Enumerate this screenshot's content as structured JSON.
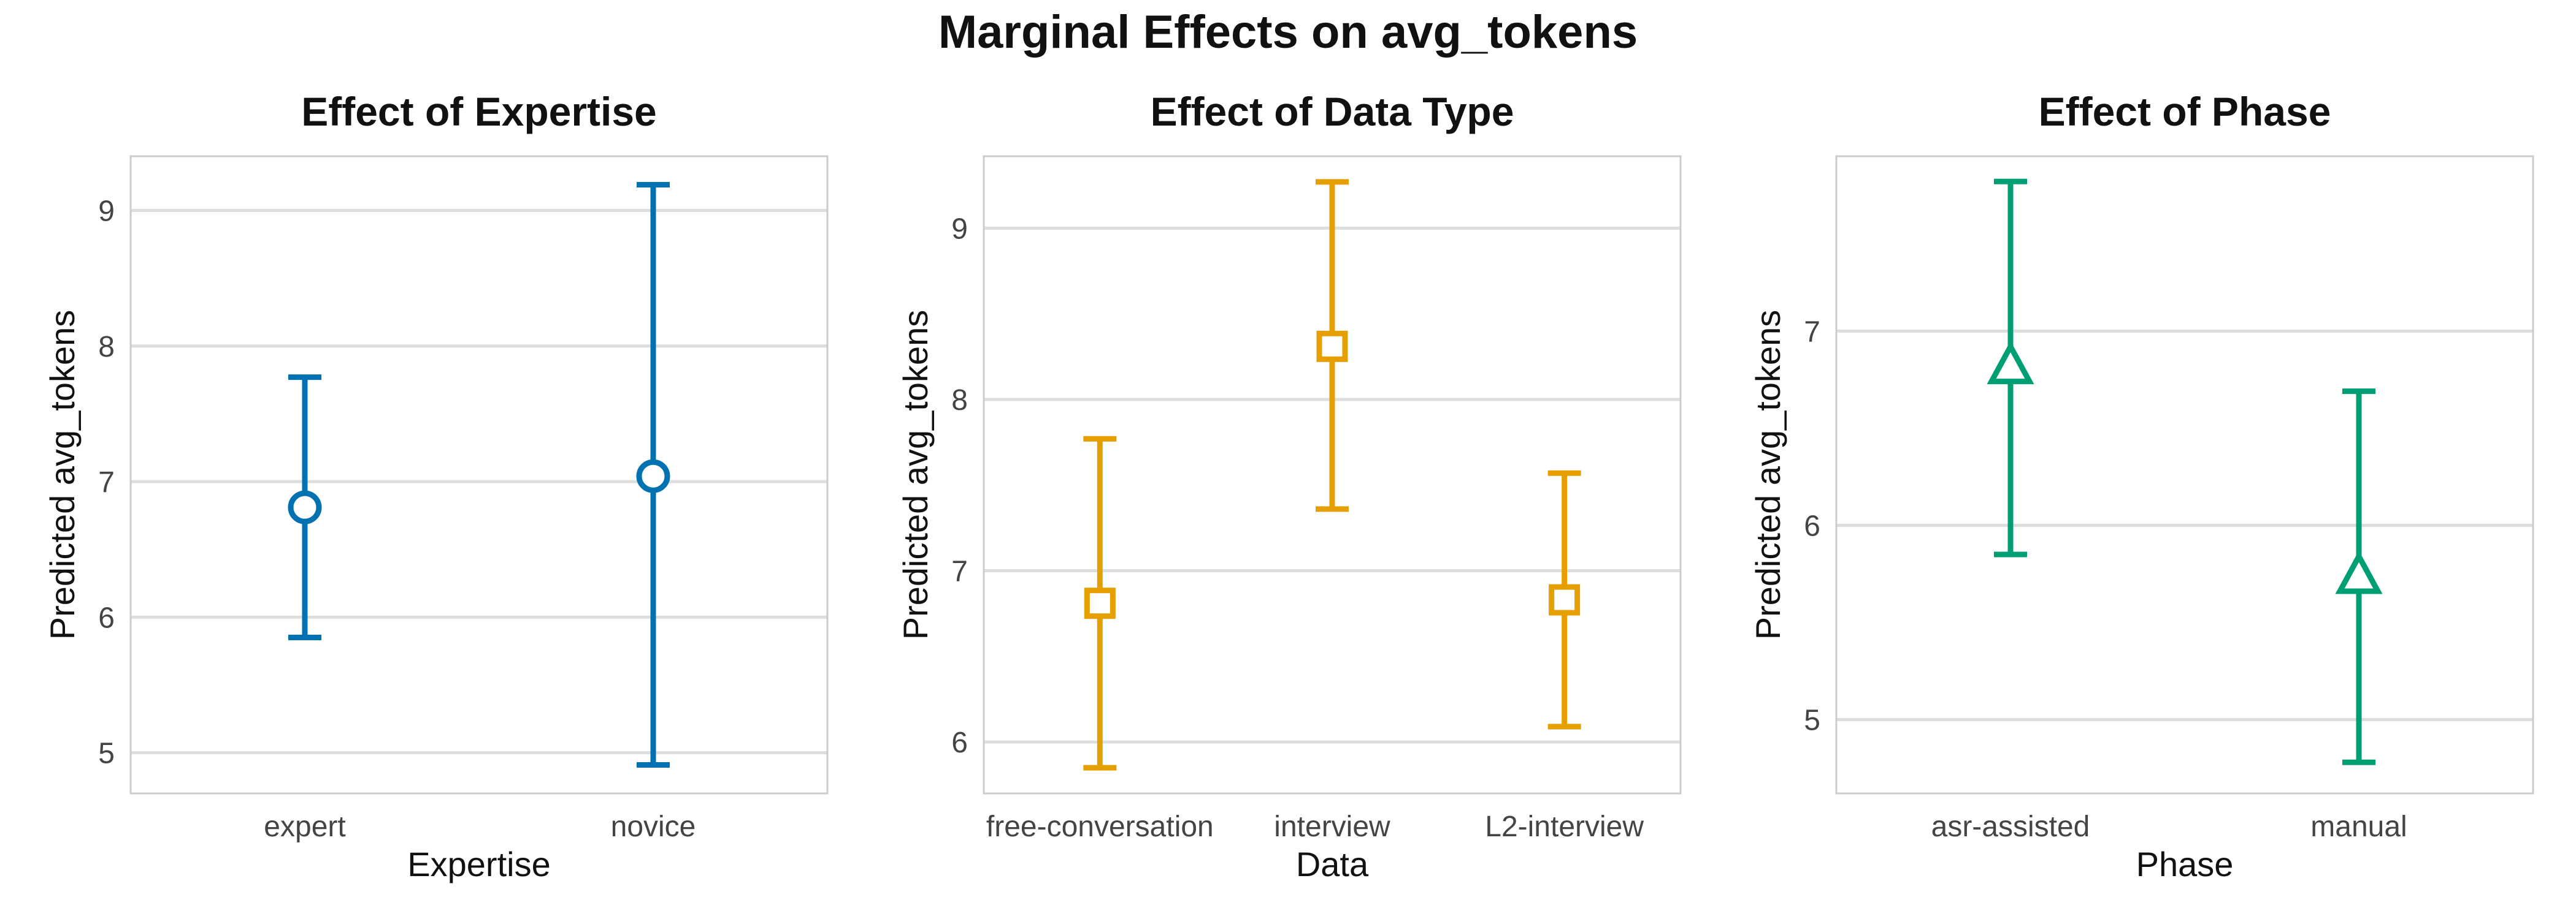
{
  "suptitle": "Marginal Effects on avg_tokens",
  "chart_data": [
    {
      "type": "scatter",
      "title": "Effect of Expertise",
      "xlabel": "Expertise",
      "ylabel": "Predicted avg_tokens",
      "categories": [
        "expert",
        "novice"
      ],
      "values": [
        6.81,
        7.04
      ],
      "lower": [
        5.85,
        4.91
      ],
      "upper": [
        7.77,
        9.19
      ],
      "ylim": [
        4.7,
        9.4
      ],
      "yticks": [
        5,
        6,
        7,
        8,
        9
      ],
      "marker": "circle",
      "color": "#0072B2",
      "grid": "horizontal"
    },
    {
      "type": "scatter",
      "title": "Effect of Data Type",
      "xlabel": "Data",
      "ylabel": "Predicted avg_tokens",
      "categories": [
        "free-conversation",
        "interview",
        "L2-interview"
      ],
      "values": [
        6.81,
        8.31,
        6.83
      ],
      "lower": [
        5.85,
        7.36,
        6.09
      ],
      "upper": [
        7.77,
        9.27,
        7.57
      ],
      "ylim": [
        5.7,
        9.42
      ],
      "yticks": [
        6,
        7,
        8,
        9
      ],
      "marker": "square",
      "color": "#E69F00",
      "grid": "horizontal"
    },
    {
      "type": "scatter",
      "title": "Effect of Phase",
      "xlabel": "Phase",
      "ylabel": "Predicted avg_tokens",
      "categories": [
        "asr-assisted",
        "manual"
      ],
      "values": [
        6.81,
        5.73
      ],
      "lower": [
        5.85,
        4.78
      ],
      "upper": [
        7.77,
        6.69
      ],
      "ylim": [
        4.62,
        7.9
      ],
      "yticks": [
        5,
        6,
        7
      ],
      "marker": "triangle",
      "color": "#009E73",
      "grid": "horizontal"
    }
  ]
}
